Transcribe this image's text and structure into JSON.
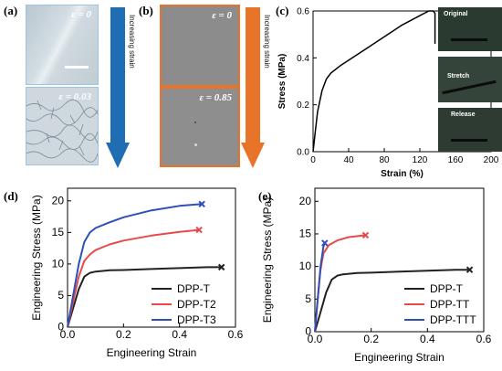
{
  "panels": {
    "a": {
      "label": "(a)",
      "top_caption": "ε = 0",
      "bottom_caption": "ε = 0.03",
      "arrow_text": "Increasing strain",
      "arrow_color": "#1f6eb3"
    },
    "b": {
      "label": "(b)",
      "top_caption": "ε = 0",
      "bottom_caption": "ε = 0.85",
      "arrow_text": "Increasing strain",
      "arrow_color": "#e8742a"
    },
    "c": {
      "label": "(c)",
      "photos": [
        "Original",
        "Stretch",
        "Release"
      ]
    },
    "d": {
      "label": "(d)"
    },
    "e": {
      "label": "(e)"
    }
  },
  "chart_data": [
    {
      "id": "c",
      "type": "line",
      "title": "",
      "xlabel": "Strain (%)",
      "ylabel": "Stress (MPa)",
      "xlim": [
        0,
        200
      ],
      "ylim": [
        0,
        0.6
      ],
      "xticks": [
        0,
        40,
        80,
        120,
        160,
        200
      ],
      "yticks": [
        0.0,
        0.2,
        0.4,
        0.6
      ],
      "grid": false,
      "series": [
        {
          "color": "#000000",
          "x": [
            0,
            2,
            5,
            10,
            15,
            20,
            30,
            40,
            60,
            80,
            100,
            120,
            130,
            135,
            137,
            137
          ],
          "y": [
            0,
            0.07,
            0.17,
            0.26,
            0.31,
            0.335,
            0.365,
            0.39,
            0.44,
            0.49,
            0.54,
            0.58,
            0.6,
            0.6,
            0.59,
            0.46
          ]
        }
      ]
    },
    {
      "id": "d",
      "type": "line",
      "title": "",
      "xlabel": "Engineering Strain",
      "ylabel": "Engineering Stress (MPa)",
      "xlim": [
        0,
        0.6
      ],
      "ylim": [
        0,
        22
      ],
      "xticks": [
        0.0,
        0.2,
        0.4,
        0.6
      ],
      "yticks": [
        0,
        5,
        10,
        15,
        20
      ],
      "grid": false,
      "legend": "bottom-right",
      "series": [
        {
          "name": "DPP-T",
          "color": "#222222",
          "x": [
            0,
            0.02,
            0.04,
            0.06,
            0.08,
            0.1,
            0.15,
            0.2,
            0.3,
            0.4,
            0.5,
            0.55
          ],
          "y": [
            0,
            3,
            6,
            8,
            8.6,
            8.8,
            9.0,
            9.05,
            9.2,
            9.35,
            9.5,
            9.5
          ]
        },
        {
          "name": "DPP-T2",
          "color": "#e84a4a",
          "x": [
            0,
            0.02,
            0.04,
            0.06,
            0.08,
            0.1,
            0.15,
            0.2,
            0.3,
            0.4,
            0.47
          ],
          "y": [
            0,
            4,
            8,
            10.5,
            11.5,
            12.2,
            13.1,
            13.7,
            14.5,
            15.1,
            15.4
          ]
        },
        {
          "name": "DPP-T3",
          "color": "#2e4fb8",
          "x": [
            0,
            0.02,
            0.04,
            0.06,
            0.08,
            0.1,
            0.15,
            0.2,
            0.3,
            0.4,
            0.48
          ],
          "y": [
            0,
            5,
            10,
            13.5,
            15,
            15.7,
            16.6,
            17.4,
            18.5,
            19.2,
            19.5
          ]
        }
      ],
      "end_markers": "x"
    },
    {
      "id": "e",
      "type": "line",
      "title": "",
      "xlabel": "Engineering Strain",
      "ylabel": "Engineering Stress (MPa)",
      "xlim": [
        0,
        0.6
      ],
      "ylim": [
        0,
        22
      ],
      "xticks": [
        0.0,
        0.2,
        0.4,
        0.6
      ],
      "yticks": [
        0,
        5,
        10,
        15,
        20
      ],
      "grid": false,
      "legend": "bottom-right",
      "series": [
        {
          "name": "DPP-T",
          "color": "#222222",
          "x": [
            0,
            0.02,
            0.04,
            0.06,
            0.08,
            0.1,
            0.15,
            0.2,
            0.3,
            0.4,
            0.5,
            0.55
          ],
          "y": [
            0,
            3,
            6,
            8,
            8.6,
            8.8,
            9.0,
            9.05,
            9.2,
            9.35,
            9.5,
            9.5
          ]
        },
        {
          "name": "DPP-TT",
          "color": "#e84a4a",
          "x": [
            0,
            0.01,
            0.02,
            0.03,
            0.05,
            0.08,
            0.12,
            0.18
          ],
          "y": [
            0,
            5,
            9.5,
            12,
            13.3,
            14,
            14.5,
            14.8
          ]
        },
        {
          "name": "DPP-TTT",
          "color": "#2e4fb8",
          "x": [
            0,
            0.01,
            0.02,
            0.03,
            0.035
          ],
          "y": [
            0,
            5,
            10,
            13,
            13.6
          ]
        }
      ],
      "end_markers": "x"
    }
  ]
}
